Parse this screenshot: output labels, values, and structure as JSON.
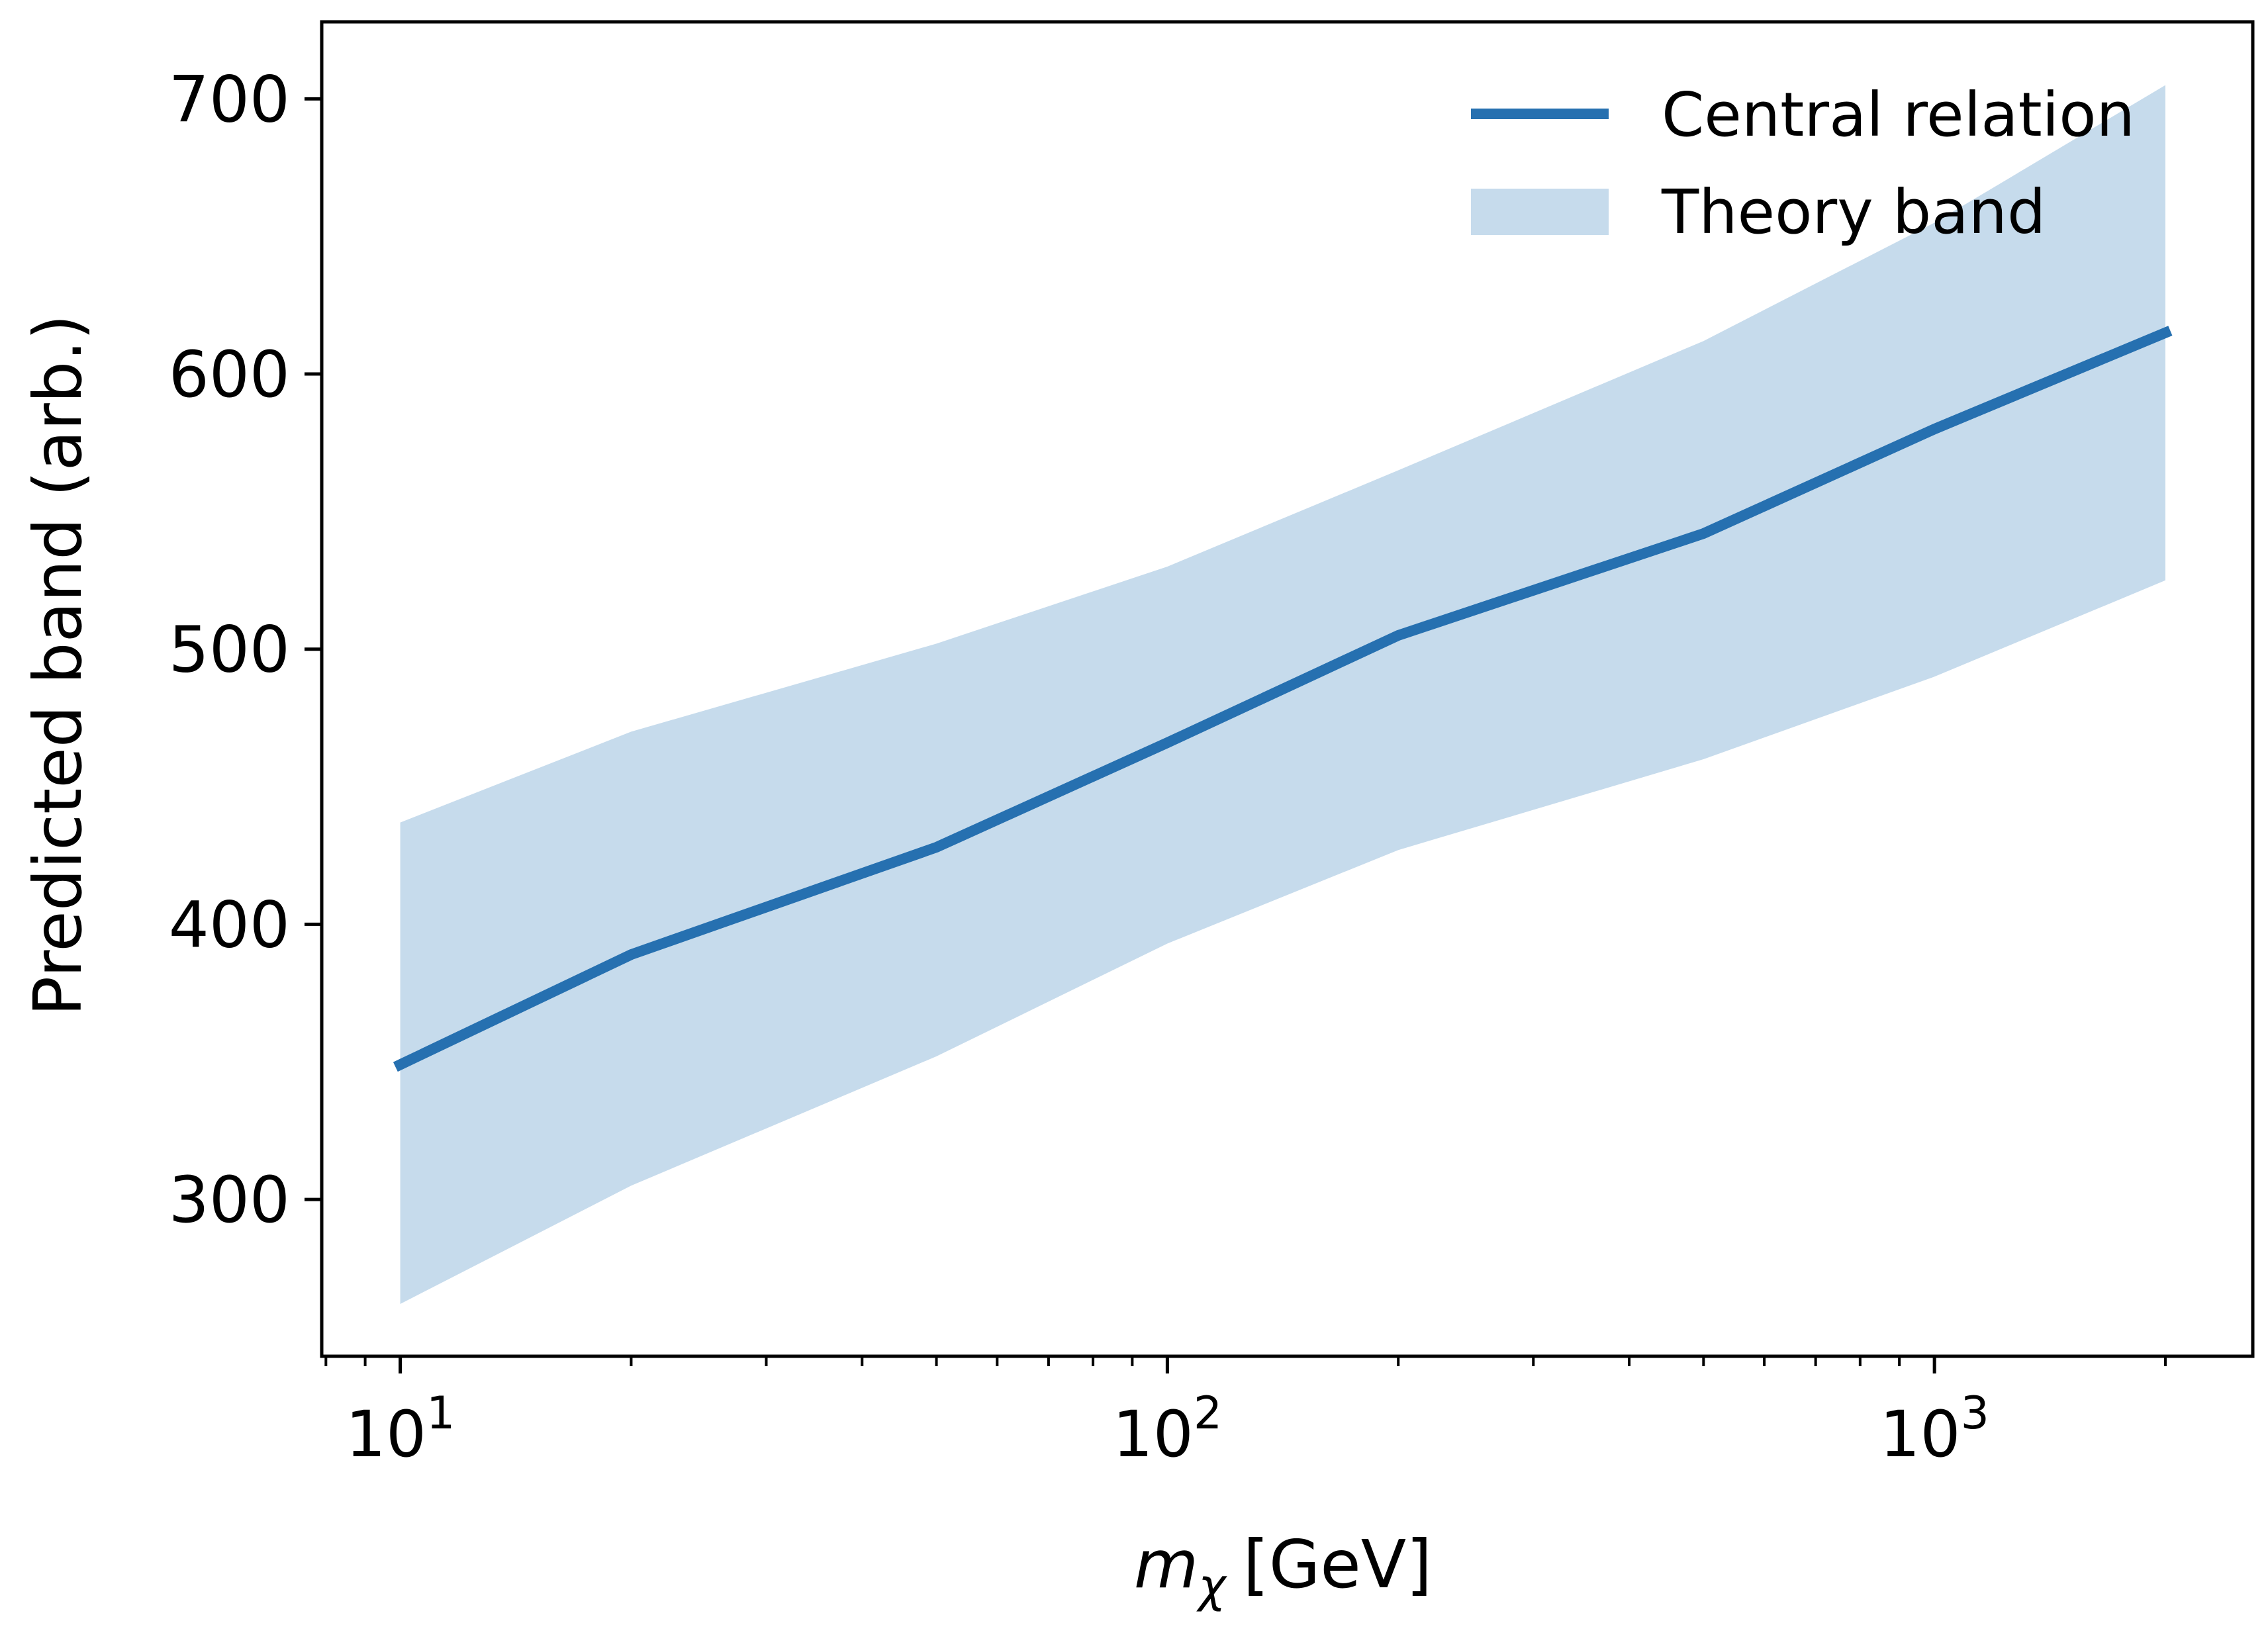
{
  "chart_data": {
    "type": "line",
    "x_scale": "log",
    "xlabel_symbol": "m",
    "xlabel_subscript": "χ",
    "xlabel_unit": "[GeV]",
    "ylabel": "Predicted band (arb.)",
    "xlim": [
      7.9,
      2600
    ],
    "ylim": [
      243,
      728
    ],
    "x_ticks": [
      {
        "base": "10",
        "exp": "1",
        "value": 10
      },
      {
        "base": "10",
        "exp": "2",
        "value": 100
      },
      {
        "base": "10",
        "exp": "3",
        "value": 1000
      }
    ],
    "y_ticks": [
      300,
      400,
      500,
      600,
      700
    ],
    "legend": {
      "placement": "top-right",
      "entries": [
        "Central relation",
        "Theory band"
      ]
    },
    "colors": {
      "line": "#2670b0",
      "band": "#c6dbec",
      "axes": "#000000"
    },
    "series": [
      {
        "name": "Central relation",
        "x": [
          10,
          20,
          50,
          100,
          200,
          500,
          1000,
          2000
        ],
        "y": [
          349,
          389,
          428,
          466,
          505,
          542,
          580,
          615
        ]
      }
    ],
    "band": {
      "name": "Theory band",
      "x": [
        10,
        20,
        50,
        100,
        200,
        500,
        1000,
        2000
      ],
      "upper": [
        437,
        470,
        502,
        530,
        565,
        612,
        655,
        705
      ],
      "lower": [
        262,
        305,
        352,
        393,
        427,
        460,
        490,
        525
      ]
    }
  }
}
